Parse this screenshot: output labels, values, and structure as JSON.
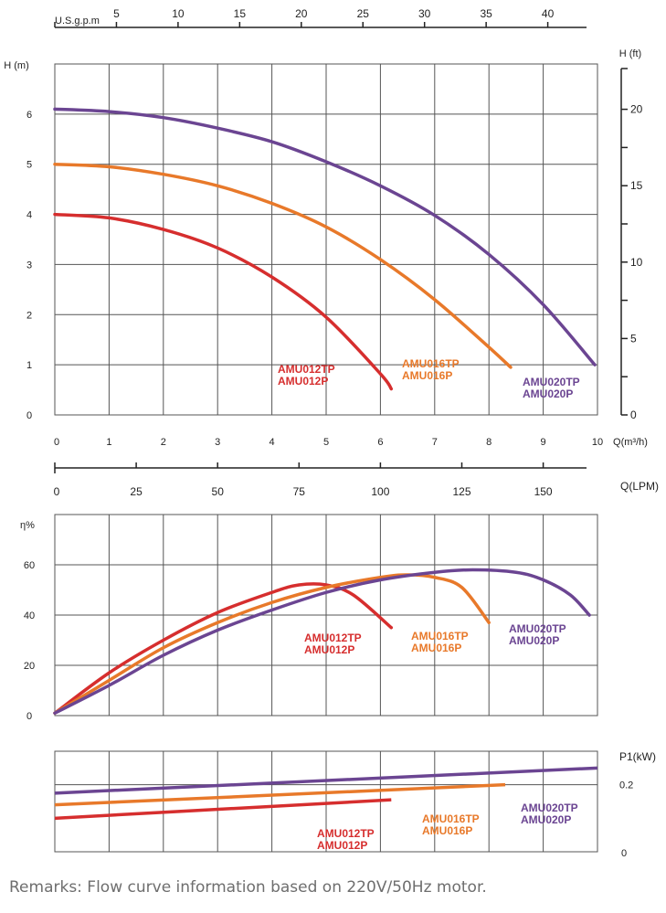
{
  "remarks": "Remarks: Flow curve information based on 220V/50Hz motor.",
  "colors": {
    "AMU012": "#d62e2e",
    "AMU016": "#e8792a",
    "AMU020": "#6b4592",
    "grid": "#555555"
  },
  "chart_data": [
    {
      "type": "line",
      "id": "head",
      "ylabel": "H (m)",
      "ylabel_right": "H (ft)",
      "xlabel": "Q(m³/h)",
      "xlabel_top": "U.S.g.p.m",
      "xlabel_lpm": "Q(LPM)",
      "xlim": [
        0,
        10
      ],
      "ylim": [
        0,
        7
      ],
      "yticks": [
        "0",
        "1",
        "2",
        "3",
        "4",
        "5",
        "6"
      ],
      "xticks": [
        "0",
        "1",
        "2",
        "3",
        "4",
        "5",
        "6",
        "7",
        "8",
        "9",
        "10"
      ],
      "yticks_ft": [
        "0",
        "5",
        "10",
        "15",
        "20"
      ],
      "top_ticks": [
        "5",
        "10",
        "15",
        "20",
        "25",
        "30",
        "35",
        "40"
      ],
      "lpm_ticks": [
        "0",
        "25",
        "50",
        "75",
        "100",
        "125",
        "150"
      ],
      "grid": true,
      "series": [
        {
          "model": "AMU012",
          "name": "AMU012TP",
          "name2": "AMU012P",
          "x": [
            0,
            1,
            2,
            3,
            4,
            5,
            6,
            6.2
          ],
          "y": [
            4.0,
            3.93,
            3.7,
            3.33,
            2.75,
            1.95,
            0.82,
            0.52
          ]
        },
        {
          "model": "AMU016",
          "name": "AMU016TP",
          "name2": "AMU016P",
          "x": [
            0,
            1,
            2,
            3,
            4,
            5,
            6,
            7,
            8,
            8.4
          ],
          "y": [
            5.0,
            4.95,
            4.8,
            4.57,
            4.22,
            3.75,
            3.1,
            2.3,
            1.35,
            0.95
          ]
        },
        {
          "model": "AMU020",
          "name": "AMU020TP",
          "name2": "AMU020P",
          "x": [
            0,
            1,
            2,
            3,
            4,
            5,
            6,
            7,
            8,
            9,
            9.95
          ],
          "y": [
            6.1,
            6.05,
            5.93,
            5.72,
            5.45,
            5.05,
            4.57,
            3.98,
            3.2,
            2.2,
            1.0
          ]
        }
      ]
    },
    {
      "type": "line",
      "id": "efficiency",
      "ylabel": "η%",
      "xlim": [
        0,
        10
      ],
      "ylim": [
        0,
        80
      ],
      "yticks": [
        "0",
        "20",
        "40",
        "60"
      ],
      "grid": true,
      "series": [
        {
          "model": "AMU012",
          "name": "AMU012TP",
          "name2": "AMU012P",
          "x": [
            0,
            1,
            2,
            3,
            4,
            4.5,
            5,
            5.5,
            6.2
          ],
          "y": [
            1,
            17,
            30,
            41,
            49,
            52,
            52,
            48,
            35
          ]
        },
        {
          "model": "AMU016",
          "name": "AMU016TP",
          "name2": "AMU016P",
          "x": [
            0,
            1,
            2,
            3,
            4,
            5,
            6,
            6.5,
            7,
            7.5,
            8.0
          ],
          "y": [
            1,
            14,
            27,
            37,
            45,
            51,
            55,
            56,
            55,
            51,
            37
          ]
        },
        {
          "model": "AMU020",
          "name": "AMU020TP",
          "name2": "AMU020P",
          "x": [
            0,
            1,
            2,
            3,
            4,
            5,
            6,
            7,
            7.7,
            8.5,
            9,
            9.5,
            9.85
          ],
          "y": [
            1,
            12,
            24,
            34,
            42,
            49,
            54,
            57,
            58,
            57,
            54,
            48,
            40
          ]
        }
      ]
    },
    {
      "type": "line",
      "id": "power",
      "ylabel": "P1(kW)",
      "xlim": [
        0,
        10
      ],
      "ylim": [
        0,
        0.3
      ],
      "yticks": [
        "0",
        "0.2"
      ],
      "grid": true,
      "series": [
        {
          "model": "AMU012",
          "name": "AMU012TP",
          "name2": "AMU012P",
          "x": [
            0,
            6.2
          ],
          "y": [
            0.1,
            0.155
          ]
        },
        {
          "model": "AMU016",
          "name": "AMU016TP",
          "name2": "AMU016P",
          "x": [
            0,
            8.3
          ],
          "y": [
            0.14,
            0.2
          ]
        },
        {
          "model": "AMU020",
          "name": "AMU020TP",
          "name2": "AMU020P",
          "x": [
            0,
            10
          ],
          "y": [
            0.175,
            0.25
          ]
        }
      ]
    }
  ]
}
